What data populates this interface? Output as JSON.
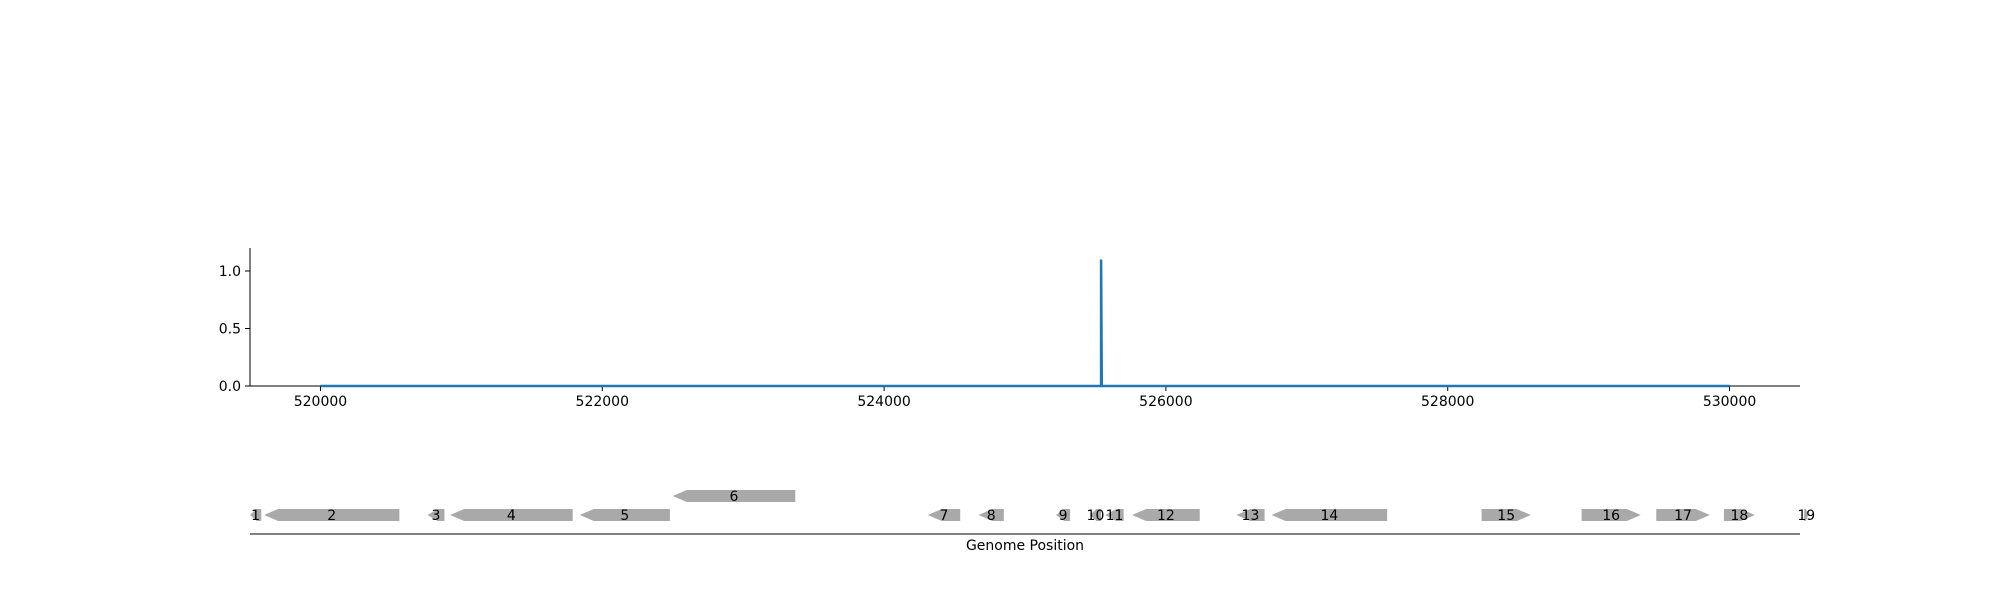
{
  "chart_data": [
    {
      "type": "line",
      "title": "",
      "xlabel": "",
      "ylabel": "",
      "xlim": [
        519500,
        530500
      ],
      "ylim": [
        0,
        1.2
      ],
      "grid": false,
      "legend": "none",
      "xticks": [
        520000,
        522000,
        524000,
        526000,
        528000,
        530000
      ],
      "xtick_labels": [
        "520000",
        "522000",
        "524000",
        "526000",
        "528000",
        "530000"
      ],
      "yticks": [
        0.0,
        0.5,
        1.0
      ],
      "ytick_labels": [
        "0.0",
        "0.5",
        "1.0"
      ],
      "series": [
        {
          "color": "#1f77b4",
          "x": [
            520000,
            525540,
            525540,
            525540,
            525545,
            530000
          ],
          "y": [
            0,
            0,
            1.1,
            1.1,
            0,
            0
          ]
        }
      ]
    },
    {
      "type": "gene-track",
      "xlabel": "Genome Position",
      "xlim": [
        519500,
        530500
      ],
      "feature_color": "#a9a9a9",
      "genes": [
        {
          "label": "1",
          "start": 519500,
          "end": 519580,
          "strand": "-",
          "row": 0
        },
        {
          "label": "2",
          "start": 519600,
          "end": 520560,
          "strand": "-",
          "row": 0
        },
        {
          "label": "3",
          "start": 520760,
          "end": 520880,
          "strand": "-",
          "row": 0
        },
        {
          "label": "4",
          "start": 520920,
          "end": 521790,
          "strand": "-",
          "row": 0
        },
        {
          "label": "5",
          "start": 521840,
          "end": 522480,
          "strand": "-",
          "row": 0
        },
        {
          "label": "6",
          "start": 522500,
          "end": 523370,
          "strand": "-",
          "row": 1
        },
        {
          "label": "7",
          "start": 524310,
          "end": 524540,
          "strand": "-",
          "row": 0
        },
        {
          "label": "8",
          "start": 524670,
          "end": 524850,
          "strand": "-",
          "row": 0
        },
        {
          "label": "9",
          "start": 525220,
          "end": 525320,
          "strand": "-",
          "row": 0
        },
        {
          "label": "10",
          "start": 525460,
          "end": 525540,
          "strand": "-",
          "row": 0
        },
        {
          "label": "11",
          "start": 525570,
          "end": 525700,
          "strand": "-",
          "row": 0
        },
        {
          "label": "12",
          "start": 525760,
          "end": 526240,
          "strand": "-",
          "row": 0
        },
        {
          "label": "13",
          "start": 526500,
          "end": 526700,
          "strand": "-",
          "row": 0
        },
        {
          "label": "14",
          "start": 526750,
          "end": 527570,
          "strand": "-",
          "row": 0
        },
        {
          "label": "15",
          "start": 528240,
          "end": 528590,
          "strand": "+",
          "row": 0
        },
        {
          "label": "16",
          "start": 528950,
          "end": 529370,
          "strand": "+",
          "row": 0
        },
        {
          "label": "17",
          "start": 529480,
          "end": 529860,
          "strand": "+",
          "row": 0
        },
        {
          "label": "18",
          "start": 529960,
          "end": 530180,
          "strand": "+",
          "row": 0
        },
        {
          "label": "19",
          "start": 530530,
          "end": 531000,
          "strand": "+",
          "row": 0
        }
      ]
    }
  ]
}
